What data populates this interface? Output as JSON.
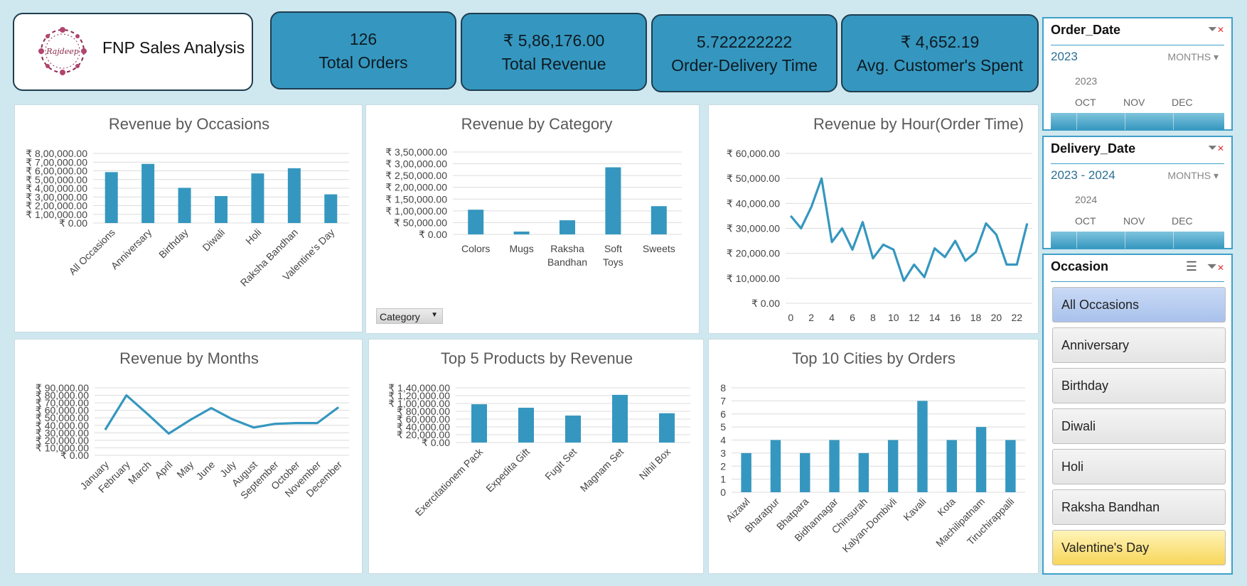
{
  "title": "FNP Sales Analysis",
  "logo": {
    "text": "Rajdeep",
    "icon": "floral-wreath-logo"
  },
  "kpis": [
    {
      "value": "126",
      "label": "Total Orders"
    },
    {
      "value": "₹ 5,86,176.00",
      "label": "Total Revenue"
    },
    {
      "value": "5.722222222",
      "label": "Order-Delivery Time"
    },
    {
      "value": "₹ 4,652.19",
      "label": "Avg. Customer's Spent"
    }
  ],
  "slicers": {
    "order_date": {
      "title": "Order_Date",
      "year": "2023",
      "granularity": "MONTHS",
      "sub_year": "2023",
      "months": [
        "OCT",
        "NOV",
        "DEC"
      ]
    },
    "delivery_date": {
      "title": "Delivery_Date",
      "year": "2023 - 2024",
      "granularity": "MONTHS",
      "sub_year": "2024",
      "months": [
        "OCT",
        "NOV",
        "DEC"
      ]
    },
    "occasion": {
      "title": "Occasion",
      "items": [
        "All Occasions",
        "Anniversary",
        "Birthday",
        "Diwali",
        "Holi",
        "Raksha Bandhan",
        "Valentine's Day"
      ]
    }
  },
  "category_filter_label": "Category",
  "colors": {
    "bar": "#3597bf",
    "kpi": "#3597bf",
    "background": "#cfe7ef"
  },
  "chart_data": [
    {
      "id": "occasions",
      "type": "bar",
      "title": "Revenue by Occasions",
      "categories": [
        "All Occasions",
        "Anniversary",
        "Birthday",
        "Diwali",
        "Holi",
        "Raksha Bandhan",
        "Valentine's Day"
      ],
      "values": [
        585000,
        680000,
        405000,
        310000,
        570000,
        630000,
        330000
      ],
      "ylim": [
        0,
        800000
      ],
      "yticks": [
        "₹ 0.00",
        "₹ 1,00,000.00",
        "₹ 2,00,000.00",
        "₹ 3,00,000.00",
        "₹ 4,00,000.00",
        "₹ 5,00,000.00",
        "₹ 6,00,000.00",
        "₹ 7,00,000.00",
        "₹ 8,00,000.00"
      ]
    },
    {
      "id": "category",
      "type": "bar",
      "title": "Revenue by Category",
      "categories": [
        "Colors",
        "Mugs",
        "Raksha Bandhan",
        "Soft Toys",
        "Sweets"
      ],
      "values": [
        105000,
        12000,
        60000,
        285000,
        120000
      ],
      "ylim": [
        0,
        350000
      ],
      "yticks": [
        "₹ 0.00",
        "₹ 50,000.00",
        "₹ 1,00,000.00",
        "₹ 1,50,000.00",
        "₹ 2,00,000.00",
        "₹ 2,50,000.00",
        "₹ 3,00,000.00",
        "₹ 3,50,000.00"
      ]
    },
    {
      "id": "hour",
      "type": "line",
      "title": "Revenue by Hour(Order Time)",
      "x": [
        0,
        1,
        2,
        3,
        4,
        5,
        6,
        7,
        8,
        9,
        10,
        11,
        12,
        13,
        14,
        15,
        16,
        17,
        18,
        19,
        20,
        21,
        22,
        23
      ],
      "values": [
        35000,
        30000,
        38500,
        50000,
        24500,
        30000,
        21500,
        32500,
        18000,
        23500,
        21500,
        9000,
        15500,
        10500,
        22000,
        18500,
        25000,
        17000,
        20500,
        32000,
        27500,
        15500,
        15500,
        32000
      ],
      "ylim": [
        0,
        60000
      ],
      "xticks": [
        "0",
        "2",
        "4",
        "6",
        "8",
        "10",
        "12",
        "14",
        "16",
        "18",
        "20",
        "22"
      ],
      "yticks": [
        "₹ 0.00",
        "₹ 10,000.00",
        "₹ 20,000.00",
        "₹ 30,000.00",
        "₹ 40,000.00",
        "₹ 50,000.00",
        "₹ 60,000.00"
      ]
    },
    {
      "id": "months",
      "type": "line",
      "title": "Revenue by Months",
      "categories": [
        "January",
        "February",
        "March",
        "April",
        "May",
        "June",
        "July",
        "August",
        "September",
        "October",
        "November",
        "December"
      ],
      "values": [
        34000,
        80000,
        55000,
        29000,
        47000,
        63000,
        48000,
        37000,
        42000,
        43000,
        43000,
        64000
      ],
      "ylim": [
        0,
        90000
      ],
      "yticks": [
        "₹ 0.00",
        "₹ 10,000.00",
        "₹ 20,000.00",
        "₹ 30,000.00",
        "₹ 40,000.00",
        "₹ 50,000.00",
        "₹ 60,000.00",
        "₹ 70,000.00",
        "₹ 80,000.00",
        "₹ 90,000.00"
      ]
    },
    {
      "id": "products",
      "type": "bar",
      "title": "Top 5 Products by Revenue",
      "categories": [
        "Exercitationem Pack",
        "Expedita Gift",
        "Fugit Set",
        "Magnam Set",
        "Nihil Box"
      ],
      "values": [
        98000,
        89000,
        69000,
        122000,
        75000
      ],
      "ylim": [
        0,
        140000
      ],
      "yticks": [
        "₹ 0.00",
        "₹ 20,000.00",
        "₹ 40,000.00",
        "₹ 60,000.00",
        "₹ 80,000.00",
        "₹ 1,00,000.00",
        "₹ 1,20,000.00",
        "₹ 1,40,000.00"
      ]
    },
    {
      "id": "cities",
      "type": "bar",
      "title": "Top 10 Cities by Orders",
      "categories": [
        "Aizawl",
        "Bharatpur",
        "Bhatpara",
        "Bidhannagar",
        "Chinsurah",
        "Kalyan-Dombivli",
        "Kavali",
        "Kota",
        "Machilipatnam",
        "Tiruchirappalli"
      ],
      "values": [
        3,
        4,
        3,
        4,
        3,
        4,
        7,
        4,
        5,
        4
      ],
      "ylim": [
        0,
        8
      ],
      "yticks": [
        "0",
        "1",
        "2",
        "3",
        "4",
        "5",
        "6",
        "7",
        "8"
      ]
    }
  ]
}
